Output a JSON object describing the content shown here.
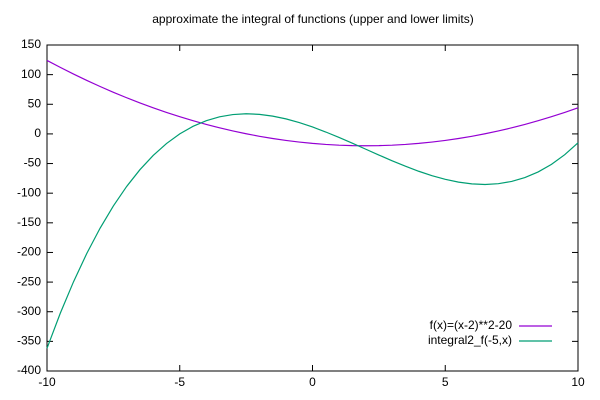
{
  "chart_data": {
    "type": "line",
    "title": "approximate the integral of functions (upper and lower limits)",
    "x": [
      -10,
      -9.5,
      -9,
      -8.5,
      -8,
      -7.5,
      -7,
      -6.5,
      -6,
      -5.5,
      -5,
      -4.5,
      -4,
      -3.5,
      -3,
      -2.5,
      -2,
      -1.5,
      -1,
      -0.5,
      0,
      0.5,
      1,
      1.5,
      2,
      2.5,
      3,
      3.5,
      4,
      4.5,
      5,
      5.5,
      6,
      6.5,
      7,
      7.5,
      8,
      8.5,
      9,
      9.5,
      10
    ],
    "series": [
      {
        "name": "f(x)=(x-2)**2-20",
        "color": "#9400d3",
        "values": [
          124,
          112.25,
          101,
          90.25,
          80,
          70.25,
          61,
          52.25,
          44,
          36.25,
          29,
          22.25,
          16,
          10.25,
          5,
          0.25,
          -4,
          -7.75,
          -11,
          -13.75,
          -16,
          -17.75,
          -19,
          -19.75,
          -20,
          -19.75,
          -19,
          -17.75,
          -16,
          -13.75,
          -11,
          -7.75,
          -4,
          0.25,
          5,
          10.25,
          16,
          22.25,
          29,
          36.25,
          44
        ]
      },
      {
        "name": "integral2_f(-5,x)",
        "color": "#009e73",
        "values": [
          -361.67,
          -302.62,
          -249.33,
          -201.54,
          -159,
          -121.46,
          -88.67,
          -60.38,
          -36.33,
          -16.29,
          0,
          12.79,
          22.33,
          28.88,
          32.67,
          33.96,
          33,
          30.04,
          25.33,
          19.13,
          11.67,
          3.21,
          -6,
          -15.71,
          -25.67,
          -35.62,
          -45.33,
          -54.54,
          -63,
          -70.46,
          -76.67,
          -81.38,
          -84.33,
          -85.29,
          -84,
          -80.21,
          -73.67,
          -64.13,
          -51.33,
          -35.04,
          -15
        ]
      }
    ],
    "xlim": [
      -10,
      10
    ],
    "xticks": [
      -10,
      -5,
      0,
      5,
      10
    ],
    "ylim": [
      -400,
      150
    ],
    "yticks": [
      -400,
      -350,
      -300,
      -250,
      -200,
      -150,
      -100,
      -50,
      0,
      50,
      100,
      150
    ],
    "grid": false,
    "legend": "bottom-right"
  }
}
